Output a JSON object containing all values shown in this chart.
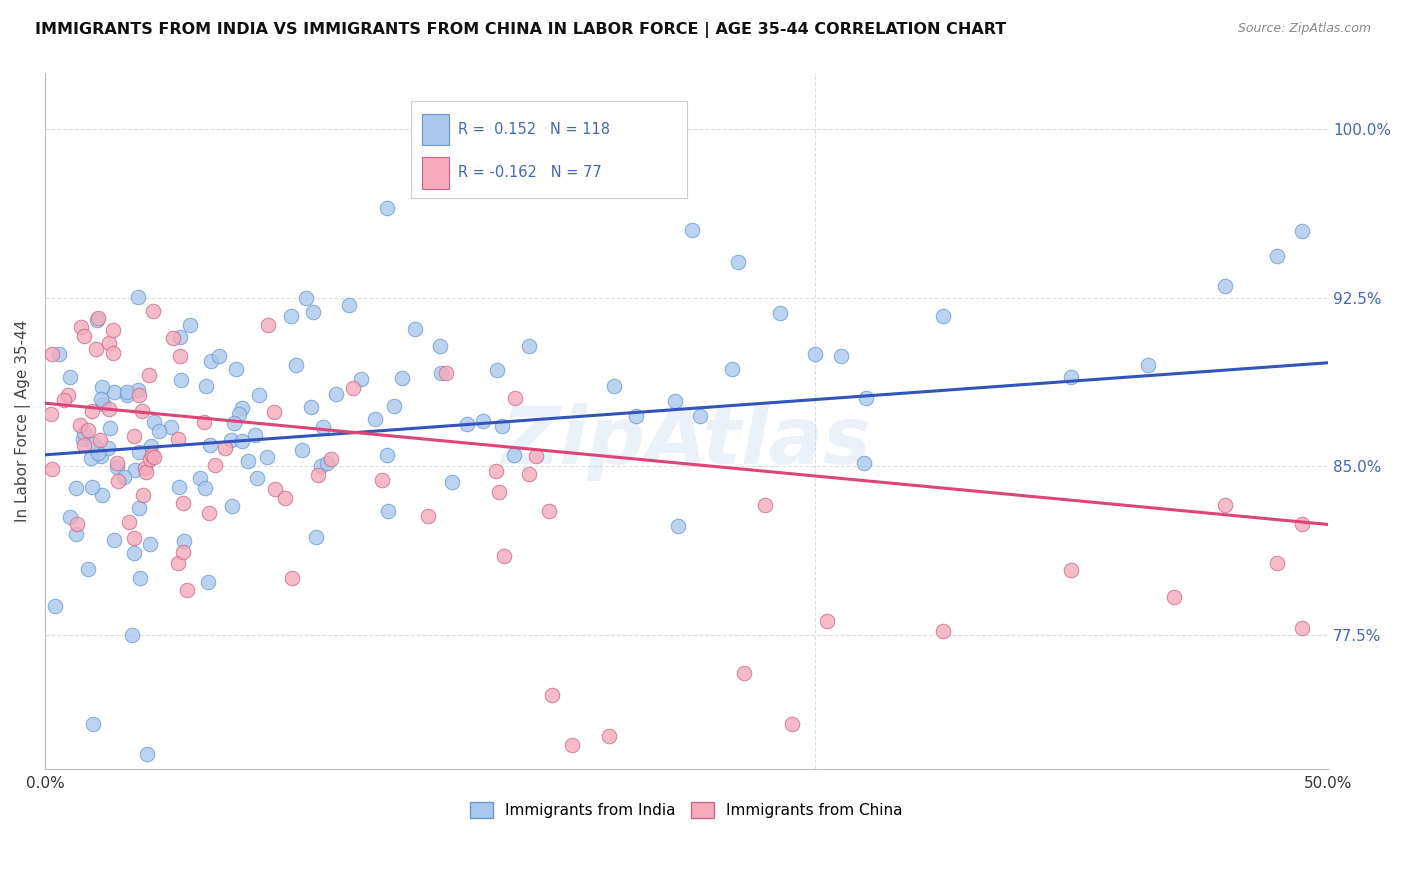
{
  "title": "IMMIGRANTS FROM INDIA VS IMMIGRANTS FROM CHINA IN LABOR FORCE | AGE 35-44 CORRELATION CHART",
  "source": "Source: ZipAtlas.com",
  "ylabel": "In Labor Force | Age 35-44",
  "xlim": [
    0.0,
    0.5
  ],
  "ylim": [
    0.715,
    1.025
  ],
  "yticks_right": [
    0.775,
    0.85,
    0.925,
    1.0
  ],
  "yticklabels_right": [
    "77.5%",
    "85.0%",
    "92.5%",
    "100.0%"
  ],
  "india_color": "#aac8ee",
  "india_edge_color": "#6699cc",
  "china_color": "#f4aabb",
  "china_edge_color": "#cc6688",
  "india_line_color": "#3355bb",
  "china_line_color": "#dd4477",
  "legend_india_label": "Immigrants from India",
  "legend_china_label": "Immigrants from China",
  "india_R": 0.152,
  "india_N": 118,
  "china_R": -0.162,
  "china_N": 77,
  "watermark": "ZipAtlas",
  "background_color": "#ffffff",
  "grid_color": "#dddddd",
  "title_color": "#111111",
  "source_color": "#888888",
  "tick_color": "#4466bb",
  "ylabel_color": "#444444"
}
